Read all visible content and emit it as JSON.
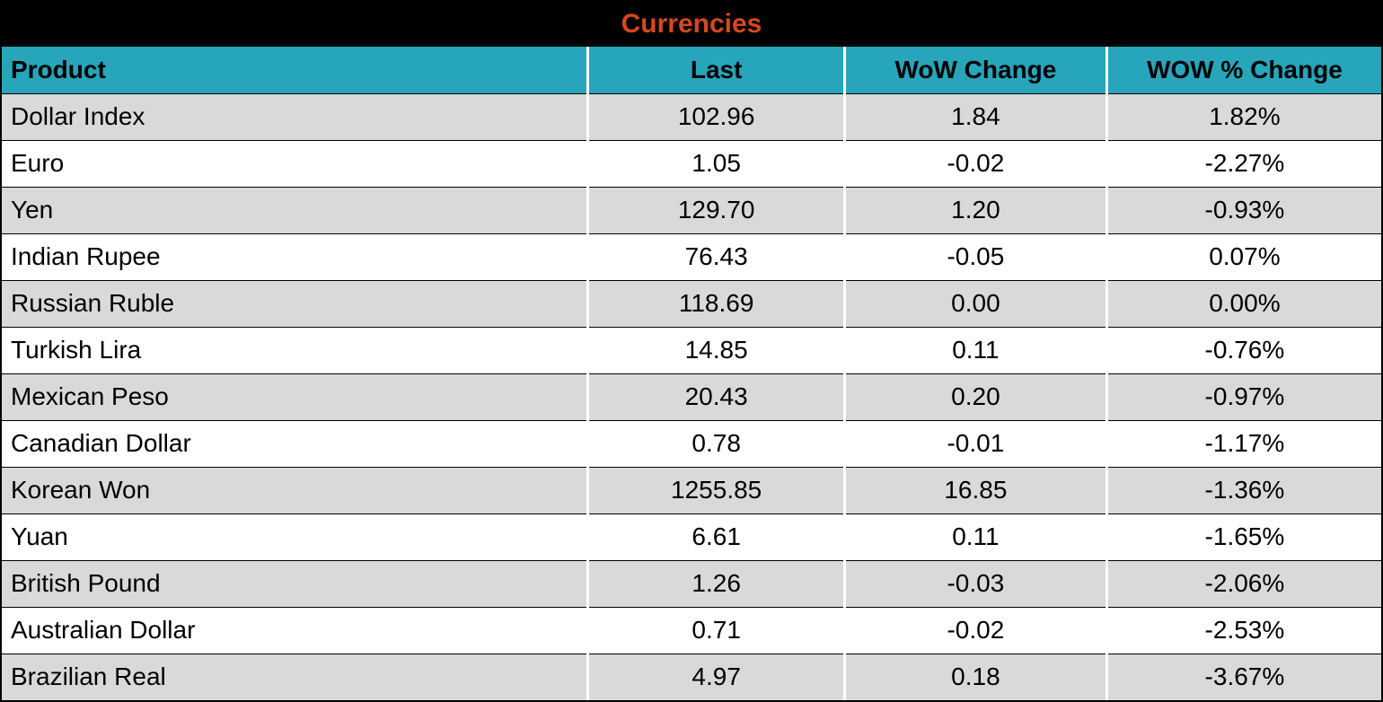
{
  "title": "Currencies",
  "colors": {
    "title_bar_bg": "#000000",
    "title_text": "#d6481e",
    "header_bg": "#27a5bb",
    "row_alt_bg": "#d9d9d9",
    "row_bg": "#ffffff",
    "text": "#000000"
  },
  "chart_data": {
    "type": "table",
    "title": "Currencies",
    "columns": [
      "Product",
      "Last",
      "WoW Change",
      "WOW % Change"
    ],
    "rows": [
      [
        "Dollar Index",
        "102.96",
        "1.84",
        "1.82%"
      ],
      [
        "Euro",
        "1.05",
        "-0.02",
        "-2.27%"
      ],
      [
        "Yen",
        "129.70",
        "1.20",
        "-0.93%"
      ],
      [
        "Indian Rupee",
        "76.43",
        "-0.05",
        "0.07%"
      ],
      [
        "Russian Ruble",
        "118.69",
        "0.00",
        "0.00%"
      ],
      [
        "Turkish Lira",
        "14.85",
        "0.11",
        "-0.76%"
      ],
      [
        "Mexican Peso",
        "20.43",
        "0.20",
        "-0.97%"
      ],
      [
        "Canadian Dollar",
        "0.78",
        "-0.01",
        "-1.17%"
      ],
      [
        "Korean Won",
        "1255.85",
        "16.85",
        "-1.36%"
      ],
      [
        "Yuan",
        "6.61",
        "0.11",
        "-1.65%"
      ],
      [
        "British Pound",
        "1.26",
        "-0.03",
        "-2.06%"
      ],
      [
        "Australian Dollar",
        "0.71",
        "-0.02",
        "-2.53%"
      ],
      [
        "Brazilian Real",
        "4.97",
        "0.18",
        "-3.67%"
      ]
    ],
    "layout": {
      "striped": true,
      "first_data_row_shaded": true,
      "value_columns_centered": true,
      "product_column_left_aligned": true
    }
  }
}
